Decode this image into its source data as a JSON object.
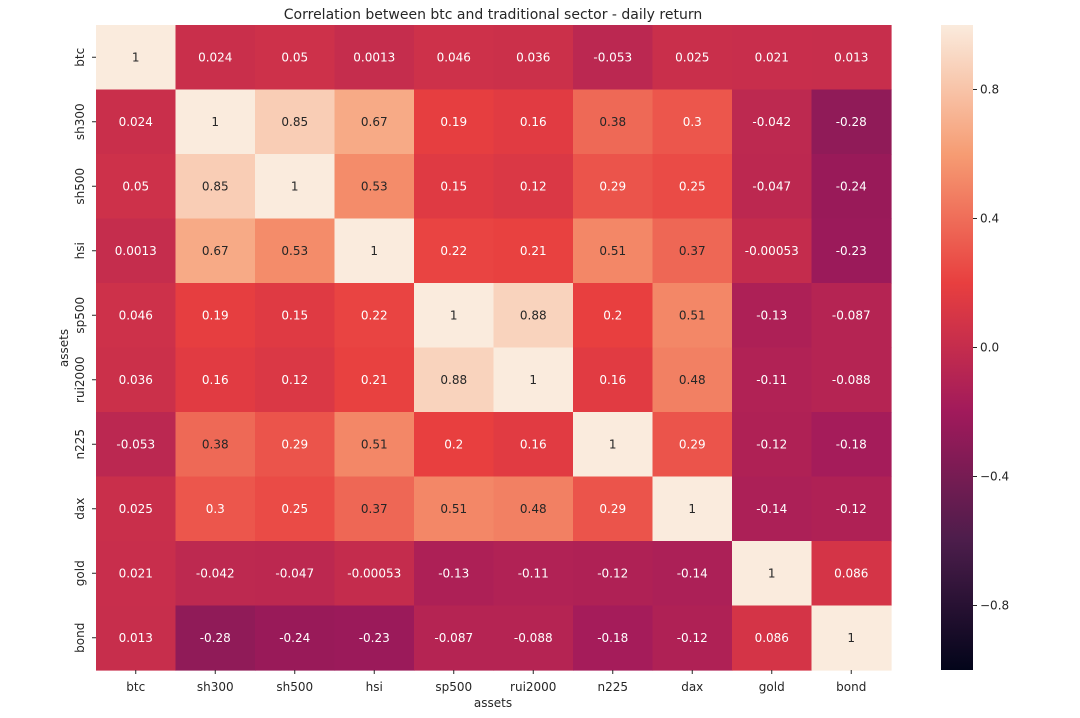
{
  "chart_data": {
    "type": "heatmap",
    "title": "Correlation between btc and traditional sector - daily return",
    "xlabel": "assets",
    "ylabel": "assets",
    "x_categories": [
      "btc",
      "sh300",
      "sh500",
      "hsi",
      "sp500",
      "rui2000",
      "n225",
      "dax",
      "gold",
      "bond"
    ],
    "y_categories": [
      "btc",
      "sh300",
      "sh500",
      "hsi",
      "sp500",
      "rui2000",
      "n225",
      "dax",
      "gold",
      "bond"
    ],
    "values": [
      [
        1,
        0.024,
        0.05,
        0.0013,
        0.046,
        0.036,
        -0.053,
        0.025,
        0.021,
        0.013
      ],
      [
        0.024,
        1,
        0.85,
        0.67,
        0.19,
        0.16,
        0.38,
        0.3,
        -0.042,
        -0.28
      ],
      [
        0.05,
        0.85,
        1,
        0.53,
        0.15,
        0.12,
        0.29,
        0.25,
        -0.047,
        -0.24
      ],
      [
        0.0013,
        0.67,
        0.53,
        1,
        0.22,
        0.21,
        0.51,
        0.37,
        -0.00053,
        -0.23
      ],
      [
        0.046,
        0.19,
        0.15,
        0.22,
        1,
        0.88,
        0.2,
        0.51,
        -0.13,
        -0.087
      ],
      [
        0.036,
        0.16,
        0.12,
        0.21,
        0.88,
        1,
        0.16,
        0.48,
        -0.11,
        -0.088
      ],
      [
        -0.053,
        0.38,
        0.29,
        0.51,
        0.2,
        0.16,
        1,
        0.29,
        -0.12,
        -0.18
      ],
      [
        0.025,
        0.3,
        0.25,
        0.37,
        0.51,
        0.48,
        0.29,
        1,
        -0.14,
        -0.12
      ],
      [
        0.021,
        -0.042,
        -0.047,
        -0.00053,
        -0.13,
        -0.11,
        -0.12,
        -0.14,
        1,
        0.086
      ],
      [
        0.013,
        -0.28,
        -0.24,
        -0.23,
        -0.087,
        -0.088,
        -0.18,
        -0.12,
        0.086,
        1
      ]
    ],
    "labels": [
      [
        "1",
        "0.024",
        "0.05",
        "0.0013",
        "0.046",
        "0.036",
        "-0.053",
        "0.025",
        "0.021",
        "0.013"
      ],
      [
        "0.024",
        "1",
        "0.85",
        "0.67",
        "0.19",
        "0.16",
        "0.38",
        "0.3",
        "-0.042",
        "-0.28"
      ],
      [
        "0.05",
        "0.85",
        "1",
        "0.53",
        "0.15",
        "0.12",
        "0.29",
        "0.25",
        "-0.047",
        "-0.24"
      ],
      [
        "0.0013",
        "0.67",
        "0.53",
        "1",
        "0.22",
        "0.21",
        "0.51",
        "0.37",
        "-0.00053",
        "-0.23"
      ],
      [
        "0.046",
        "0.19",
        "0.15",
        "0.22",
        "1",
        "0.88",
        "0.2",
        "0.51",
        "-0.13",
        "-0.087"
      ],
      [
        "0.036",
        "0.16",
        "0.12",
        "0.21",
        "0.88",
        "1",
        "0.16",
        "0.48",
        "-0.11",
        "-0.088"
      ],
      [
        "-0.053",
        "0.38",
        "0.29",
        "0.51",
        "0.2",
        "0.16",
        "1",
        "0.29",
        "-0.12",
        "-0.18"
      ],
      [
        "0.025",
        "0.3",
        "0.25",
        "0.37",
        "0.51",
        "0.48",
        "0.29",
        "1",
        "-0.14",
        "-0.12"
      ],
      [
        "0.021",
        "-0.042",
        "-0.047",
        "-0.00053",
        "-0.13",
        "-0.11",
        "-0.12",
        "-0.14",
        "1",
        "0.086"
      ],
      [
        "0.013",
        "-0.28",
        "-0.24",
        "-0.23",
        "-0.087",
        "-0.088",
        "-0.18",
        "-0.12",
        "0.086",
        "1"
      ]
    ],
    "colorbar": {
      "vmin": -1,
      "vmax": 1,
      "ticks": [
        0.8,
        0.4,
        0.0,
        -0.4,
        -0.8
      ],
      "tick_labels": [
        "0.8",
        "0.4",
        "0.0",
        "−0.4",
        "−0.8"
      ],
      "colormap": "rocket",
      "colors": [
        "#03051a",
        "#4c1d4b",
        "#a11a5b",
        "#e83f3f",
        "#f69c73",
        "#faebdd"
      ]
    },
    "annotation_colors": {
      "light_text": "#ffffff",
      "dark_text": "#262626"
    },
    "grid": false
  }
}
